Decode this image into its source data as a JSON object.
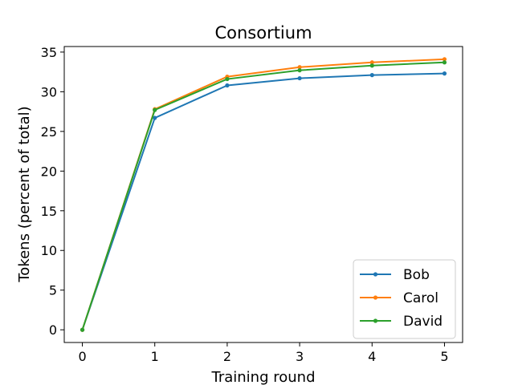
{
  "chart_data": {
    "type": "line",
    "title": "Consortium",
    "xlabel": "Training round",
    "ylabel": "Tokens (percent of total)",
    "x": [
      0,
      1,
      2,
      3,
      4,
      5
    ],
    "xlim": [
      -0.25,
      5.25
    ],
    "ylim": [
      -1.6,
      35.7
    ],
    "xticks": [
      0,
      1,
      2,
      3,
      4,
      5
    ],
    "yticks": [
      0,
      5,
      10,
      15,
      20,
      25,
      30,
      35
    ],
    "grid": false,
    "legend_position": "lower-right",
    "series": [
      {
        "name": "Bob",
        "color": "#1f77b4",
        "values": [
          0,
          26.7,
          30.8,
          31.7,
          32.1,
          32.3
        ]
      },
      {
        "name": "Carol",
        "color": "#ff7f0e",
        "values": [
          0,
          27.8,
          31.9,
          33.1,
          33.7,
          34.1
        ]
      },
      {
        "name": "David",
        "color": "#2ca02c",
        "values": [
          0,
          27.7,
          31.6,
          32.7,
          33.3,
          33.7
        ]
      }
    ]
  }
}
